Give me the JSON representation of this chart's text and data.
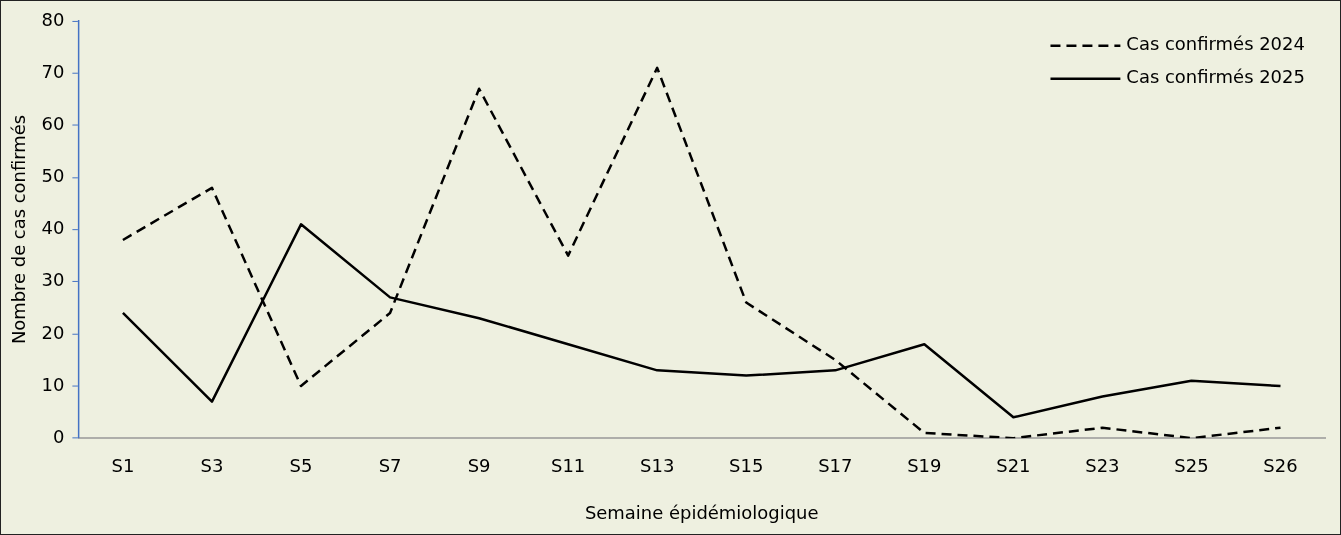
{
  "chart_data": {
    "type": "line",
    "xlabel": "Semaine épidémiologique",
    "ylabel": "Nombre de cas confirmés",
    "categories": [
      "S1",
      "S3",
      "S5",
      "S7",
      "S9",
      "S11",
      "S13",
      "S15",
      "S17",
      "S19",
      "S21",
      "S23",
      "S25",
      "S26"
    ],
    "series": [
      {
        "name": "Cas confirmés 2024",
        "color": "#000000",
        "line_style": "dashed",
        "values": [
          38,
          48,
          10,
          24,
          67,
          35,
          71,
          26,
          15,
          1,
          0,
          2,
          0,
          2
        ]
      },
      {
        "name": "Cas confirmés 2025",
        "color": "#000000",
        "line_style": "solid",
        "values": [
          24,
          7,
          41,
          27,
          23,
          18,
          13,
          12,
          13,
          18,
          4,
          8,
          11,
          10
        ]
      }
    ],
    "ylim": [
      0,
      80
    ],
    "yticks": [
      0,
      10,
      20,
      30,
      40,
      50,
      60,
      70,
      80
    ],
    "grid": false,
    "legend": "top right",
    "marker": "none"
  }
}
